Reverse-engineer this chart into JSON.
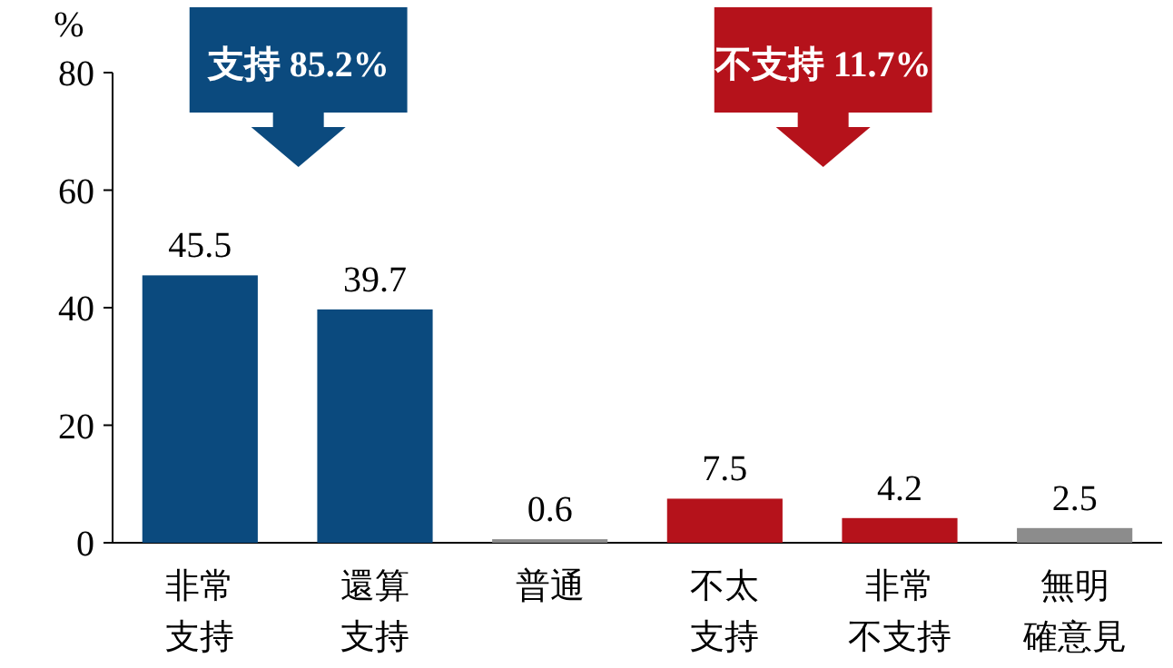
{
  "chart_data": {
    "type": "bar",
    "ylabel": "%",
    "categories": [
      "非常支持",
      "還算支持",
      "普通",
      "不太支持",
      "非常不支持",
      "無明確意見"
    ],
    "values": [
      45.5,
      39.7,
      0.6,
      7.5,
      4.2,
      2.5
    ],
    "colors": [
      "#0b4a7e",
      "#0b4a7e",
      "#8c8c8c",
      "#b5121b",
      "#b5121b",
      "#8c8c8c"
    ],
    "ylim": [
      0,
      80
    ],
    "yticks": [
      0,
      20,
      40,
      60,
      80
    ],
    "data_labels": true,
    "grid": false,
    "annotations": [
      "支持 85.2%",
      "不支持 11.7%"
    ]
  }
}
